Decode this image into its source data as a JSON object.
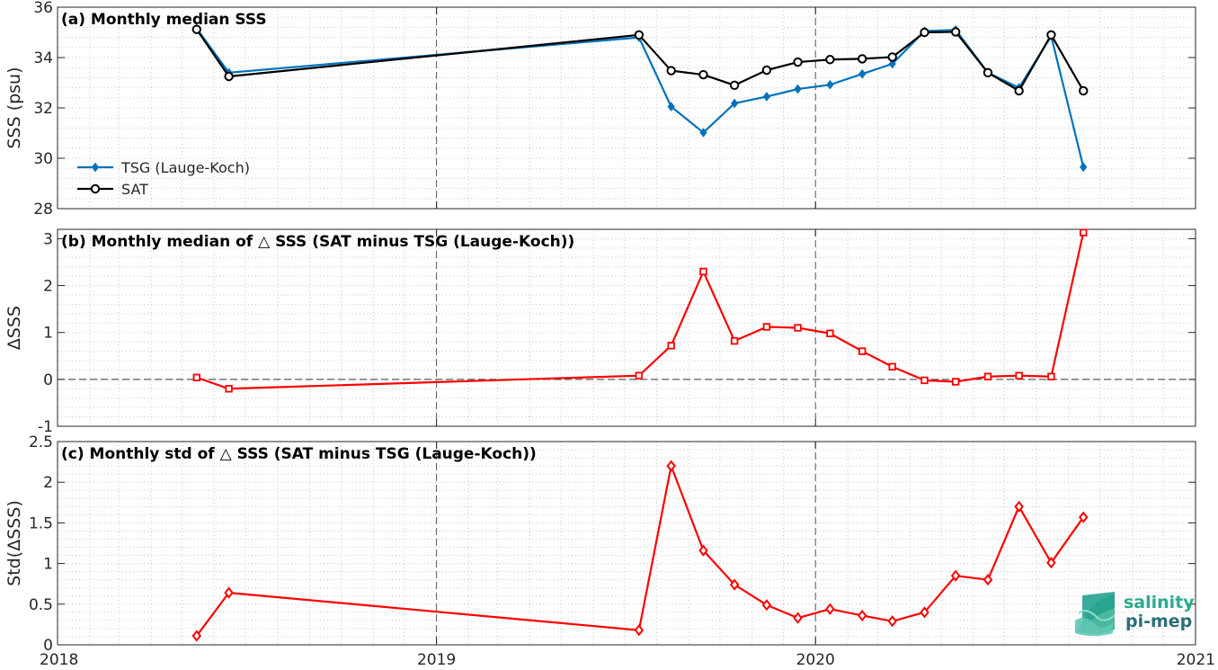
{
  "chart_data": [
    {
      "type": "line",
      "title": "(a) Monthly median SSS",
      "ylabel": "SSS (psu)",
      "xlabel": "",
      "xlim": [
        "2018-01-01",
        "2021-01-01"
      ],
      "ylim": [
        28,
        36
      ],
      "yticks": [
        28,
        30,
        32,
        34,
        36
      ],
      "xticks": [
        "2018",
        "2019",
        "2020",
        "2021"
      ],
      "grid": true,
      "legend_position": "bottom-left",
      "series": [
        {
          "name": "TSG (Lauge-Koch)",
          "color": "#0072bd",
          "marker": "filled-diamond",
          "points": [
            [
              "2018-05-15",
              35.15
            ],
            [
              "2018-06-15",
              33.4
            ],
            [
              "2019-07-15",
              34.8
            ],
            [
              "2019-08-15",
              32.05
            ],
            [
              "2019-09-15",
              31.02
            ],
            [
              "2019-10-15",
              32.18
            ],
            [
              "2019-11-15",
              32.45
            ],
            [
              "2019-12-15",
              32.75
            ],
            [
              "2020-01-15",
              32.92
            ],
            [
              "2020-02-15",
              33.35
            ],
            [
              "2020-03-15",
              33.75
            ],
            [
              "2020-04-15",
              35.05
            ],
            [
              "2020-05-15",
              35.1
            ],
            [
              "2020-06-15",
              33.4
            ],
            [
              "2020-07-15",
              32.8
            ],
            [
              "2020-08-15",
              34.85
            ],
            [
              "2020-09-15",
              29.65
            ]
          ]
        },
        {
          "name": "SAT",
          "color": "#000000",
          "marker": "circle",
          "points": [
            [
              "2018-05-15",
              35.12
            ],
            [
              "2018-06-15",
              33.25
            ],
            [
              "2019-07-15",
              34.9
            ],
            [
              "2019-08-15",
              33.48
            ],
            [
              "2019-09-15",
              33.32
            ],
            [
              "2019-10-15",
              32.9
            ],
            [
              "2019-11-15",
              33.5
            ],
            [
              "2019-12-15",
              33.82
            ],
            [
              "2020-01-15",
              33.92
            ],
            [
              "2020-02-15",
              33.95
            ],
            [
              "2020-03-15",
              34.02
            ],
            [
              "2020-04-15",
              35.0
            ],
            [
              "2020-05-15",
              35.02
            ],
            [
              "2020-06-15",
              33.4
            ],
            [
              "2020-07-15",
              32.68
            ],
            [
              "2020-08-15",
              34.9
            ],
            [
              "2020-09-15",
              32.68
            ]
          ]
        }
      ]
    },
    {
      "type": "line",
      "title": "(b) Monthly median of △ SSS (SAT minus TSG (Lauge-Koch))",
      "ylabel": "ΔSSS",
      "xlabel": "",
      "xlim": [
        "2018-01-01",
        "2021-01-01"
      ],
      "ylim": [
        -1,
        3.2
      ],
      "yticks": [
        -1,
        0,
        1,
        2,
        3
      ],
      "xticks": [
        "2018",
        "2019",
        "2020",
        "2021"
      ],
      "grid": true,
      "reference_line_y": 0,
      "series": [
        {
          "name": "",
          "color": "#ff0000",
          "marker": "square",
          "points": [
            [
              "2018-05-15",
              0.04
            ],
            [
              "2018-06-15",
              -0.2
            ],
            [
              "2019-07-15",
              0.08
            ],
            [
              "2019-08-15",
              0.72
            ],
            [
              "2019-09-15",
              2.3
            ],
            [
              "2019-10-15",
              0.82
            ],
            [
              "2019-11-15",
              1.12
            ],
            [
              "2019-12-15",
              1.1
            ],
            [
              "2020-01-15",
              0.98
            ],
            [
              "2020-02-15",
              0.6
            ],
            [
              "2020-03-15",
              0.27
            ],
            [
              "2020-04-15",
              -0.02
            ],
            [
              "2020-05-15",
              -0.05
            ],
            [
              "2020-06-15",
              0.06
            ],
            [
              "2020-07-15",
              0.08
            ],
            [
              "2020-08-15",
              0.06
            ],
            [
              "2020-09-15",
              3.13
            ]
          ]
        }
      ]
    },
    {
      "type": "line",
      "title": "(c) Monthly std of △ SSS (SAT minus TSG (Lauge-Koch))",
      "ylabel": "Std(ΔSSS)",
      "xlabel": "",
      "xlim": [
        "2018-01-01",
        "2021-01-01"
      ],
      "ylim": [
        0,
        2.5
      ],
      "yticks": [
        0,
        0.5,
        1,
        1.5,
        2,
        2.5
      ],
      "xticks": [
        "2018",
        "2019",
        "2020",
        "2021"
      ],
      "grid": true,
      "series": [
        {
          "name": "",
          "color": "#ff0000",
          "marker": "diamond",
          "points": [
            [
              "2018-05-15",
              0.11
            ],
            [
              "2018-06-15",
              0.64
            ],
            [
              "2019-07-15",
              0.18
            ],
            [
              "2019-08-15",
              2.2
            ],
            [
              "2019-09-15",
              1.16
            ],
            [
              "2019-10-15",
              0.74
            ],
            [
              "2019-11-15",
              0.49
            ],
            [
              "2019-12-15",
              0.33
            ],
            [
              "2020-01-15",
              0.44
            ],
            [
              "2020-02-15",
              0.36
            ],
            [
              "2020-03-15",
              0.29
            ],
            [
              "2020-04-15",
              0.4
            ],
            [
              "2020-05-15",
              0.85
            ],
            [
              "2020-06-15",
              0.8
            ],
            [
              "2020-07-15",
              1.7
            ],
            [
              "2020-08-15",
              1.01
            ],
            [
              "2020-09-15",
              1.57
            ]
          ]
        }
      ]
    }
  ],
  "logo": {
    "line1": "salinity",
    "line2": "pi-mep"
  }
}
